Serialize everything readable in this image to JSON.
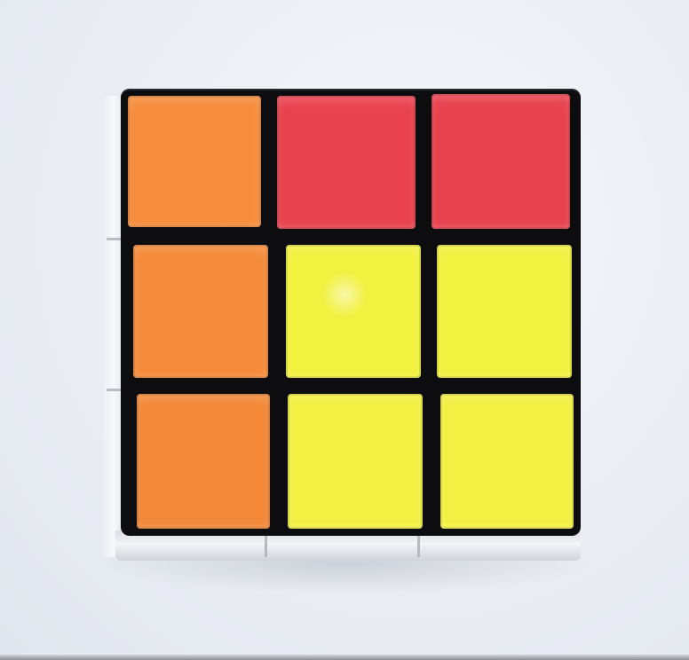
{
  "scene": {
    "subject": "rubiks-cube",
    "background_color": "#eceff5"
  },
  "cube": {
    "frame_color": "#0d0d0f",
    "body_color": "#e9ecf1",
    "rows": [
      [
        {
          "color_name": "orange",
          "hex": "#f58d3c"
        },
        {
          "color_name": "red",
          "hex": "#e8424e"
        },
        {
          "color_name": "red",
          "hex": "#e8424e"
        }
      ],
      [
        {
          "color_name": "orange",
          "hex": "#f48b3a"
        },
        {
          "color_name": "yellow",
          "hex": "#f1f140"
        },
        {
          "color_name": "yellow",
          "hex": "#f1f140"
        }
      ],
      [
        {
          "color_name": "orange",
          "hex": "#f28838"
        },
        {
          "color_name": "yellow",
          "hex": "#f2f042"
        },
        {
          "color_name": "yellow",
          "hex": "#f2f042"
        }
      ]
    ]
  }
}
